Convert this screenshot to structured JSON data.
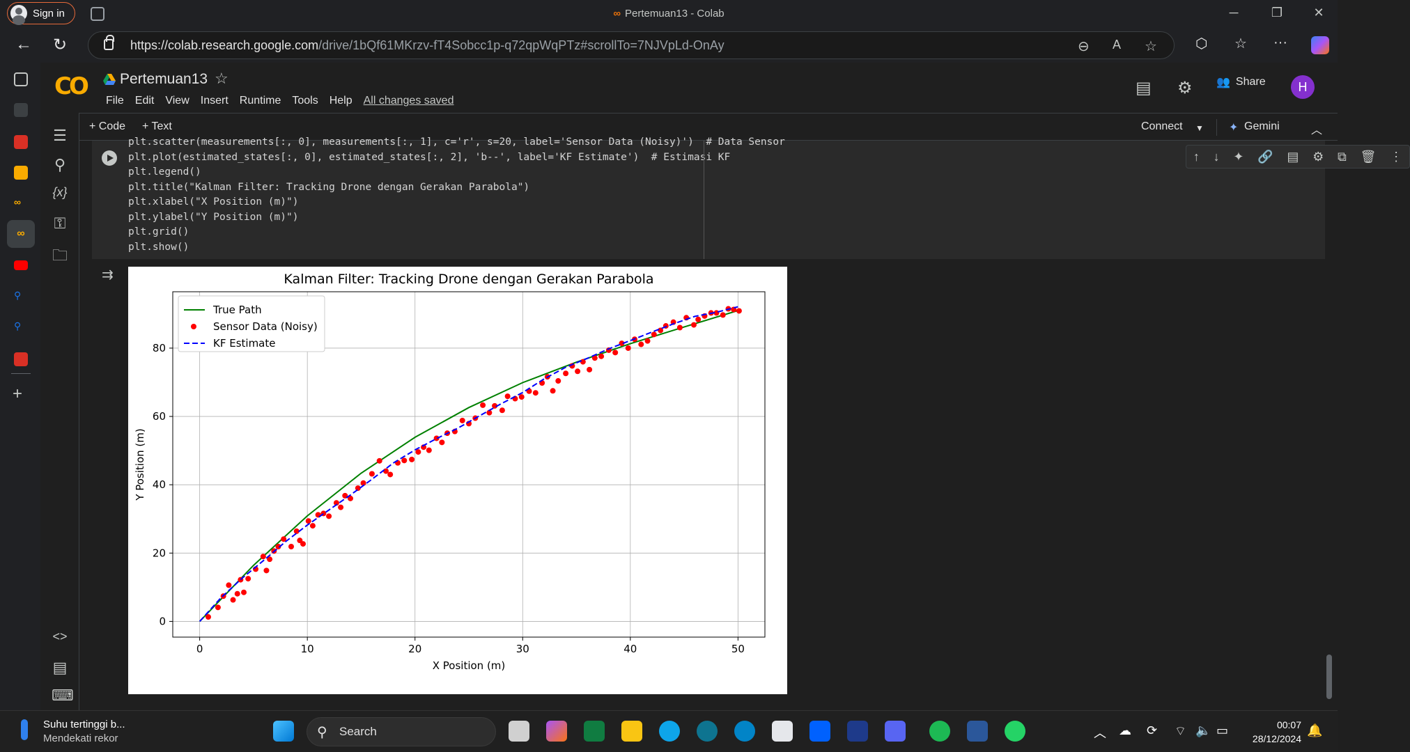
{
  "browser": {
    "sign_in": "Sign in",
    "window_title": "Pertemuan13 - Colab",
    "url_host": "https://colab.research.google.com",
    "url_path": "/drive/1bQf61MKrzv-fT4Sobcc1p-q72qpWqPTz#scrollTo=7NJVpLd-OnAy"
  },
  "colab": {
    "logo": "CO",
    "notebook_title": "Pertemuan13",
    "menu": [
      "File",
      "Edit",
      "View",
      "Insert",
      "Runtime",
      "Tools",
      "Help"
    ],
    "saved_status": "All changes saved",
    "share_label": "Share",
    "avatar_letter": "H",
    "add_code": "+ Code",
    "add_text": "+ Text",
    "connect": "Connect",
    "gemini": "Gemini"
  },
  "code_lines": [
    "plt.scatter(measurements[:, 0], measurements[:, 1], c='r', s=20, label='Sensor Data (Noisy)')  # Data Sensor",
    "plt.plot(estimated_states[:, 0], estimated_states[:, 2], 'b--', label='KF Estimate')  # Estimasi KF",
    "plt.legend()",
    "plt.title(\"Kalman Filter: Tracking Drone dengan Gerakan Parabola\")",
    "plt.xlabel(\"X Position (m)\")",
    "plt.ylabel(\"Y Position (m)\")",
    "plt.grid()",
    "plt.show()"
  ],
  "chart_data": {
    "type": "line",
    "title": "Kalman Filter: Tracking Drone dengan Gerakan Parabola",
    "xlabel": "X Position (m)",
    "ylabel": "Y Position (m)",
    "xlim": [
      -2.5,
      52.5
    ],
    "ylim": [
      -4.6,
      96.5
    ],
    "xticks": [
      0,
      10,
      20,
      30,
      40,
      50
    ],
    "yticks": [
      0,
      20,
      40,
      60,
      80
    ],
    "grid": true,
    "legend_position": "upper-left",
    "colors": {
      "true_path": "#008000",
      "sensor": "#ff0000",
      "kf": "#0000ff"
    },
    "series": [
      {
        "name": "True Path",
        "style": "line",
        "x": [
          0,
          5,
          10,
          15,
          20,
          25,
          30,
          35,
          40,
          45,
          50
        ],
        "y": [
          0,
          16.4,
          30.9,
          43.4,
          53.9,
          62.6,
          69.9,
          75.9,
          81.3,
          86.2,
          91.0
        ]
      },
      {
        "name": "Sensor Data (Noisy)",
        "style": "scatter",
        "x": [
          0.8,
          1.7,
          2.2,
          2.7,
          3.1,
          3.5,
          3.8,
          4.1,
          4.5,
          5.2,
          5.9,
          6.2,
          6.5,
          6.9,
          7.3,
          7.8,
          8.5,
          9.0,
          9.3,
          9.6,
          10.1,
          10.5,
          11.0,
          11.5,
          12.0,
          12.7,
          13.1,
          13.5,
          14.0,
          14.7,
          15.2,
          16.0,
          16.7,
          17.3,
          17.7,
          18.4,
          19.0,
          19.7,
          20.3,
          20.8,
          21.3,
          22.0,
          22.5,
          23.0,
          23.7,
          24.4,
          25.0,
          25.6,
          26.3,
          26.9,
          27.4,
          28.1,
          28.6,
          29.3,
          29.9,
          30.6,
          31.2,
          31.8,
          32.3,
          32.8,
          33.3,
          34.0,
          34.6,
          35.1,
          35.6,
          36.2,
          36.7,
          37.3,
          38.0,
          38.6,
          39.2,
          39.8,
          40.4,
          41.0,
          41.6,
          42.2,
          42.8,
          43.3,
          44.0,
          44.6,
          45.2,
          45.9,
          46.3,
          46.9,
          47.5,
          48.0,
          48.6,
          49.1,
          49.6,
          50.1
        ],
        "y": [
          1.3,
          4.1,
          7.4,
          10.6,
          6.3,
          8.1,
          12.2,
          8.5,
          12.5,
          15.3,
          19.0,
          14.9,
          18.2,
          20.6,
          21.9,
          24.1,
          21.9,
          26.4,
          23.7,
          22.7,
          29.4,
          28.0,
          31.2,
          31.6,
          30.8,
          34.7,
          33.4,
          36.8,
          36.0,
          39.0,
          40.5,
          43.2,
          47.0,
          44.0,
          43.0,
          46.4,
          47.1,
          47.4,
          49.6,
          51.0,
          50.1,
          53.6,
          52.4,
          55.1,
          55.6,
          58.8,
          57.9,
          59.5,
          63.3,
          61.1,
          63.1,
          61.8,
          65.9,
          65.2,
          65.7,
          67.4,
          66.9,
          69.8,
          71.6,
          67.5,
          70.4,
          72.6,
          74.8,
          73.2,
          76.0,
          73.7,
          77.1,
          77.6,
          79.4,
          78.7,
          81.4,
          80.0,
          82.6,
          81.1,
          82.1,
          84.0,
          85.2,
          86.5,
          87.6,
          86.0,
          88.9,
          86.8,
          88.4,
          89.4,
          90.3,
          90.3,
          89.7,
          91.5,
          91.3,
          90.9
        ]
      },
      {
        "name": "KF Estimate",
        "style": "dashed",
        "x": [
          0,
          2,
          4,
          6,
          8,
          10,
          12,
          14,
          16,
          18,
          20,
          22,
          24,
          26,
          28,
          30,
          32,
          34,
          36,
          38,
          40,
          42,
          44,
          46,
          48,
          50
        ],
        "y": [
          0,
          7.0,
          12.8,
          18.0,
          23.4,
          28.2,
          32.6,
          37.0,
          41.6,
          46.4,
          50.2,
          53.5,
          56.6,
          60.2,
          63.7,
          67.0,
          71.0,
          74.4,
          77.0,
          79.8,
          82.2,
          84.7,
          87.1,
          89.3,
          90.5,
          92.1
        ]
      }
    ]
  },
  "taskbar": {
    "weather_title": "Suhu tertinggi b...",
    "weather_sub": "Mendekati rekor",
    "search": "Search",
    "time": "00:07",
    "date": "28/12/2024"
  }
}
